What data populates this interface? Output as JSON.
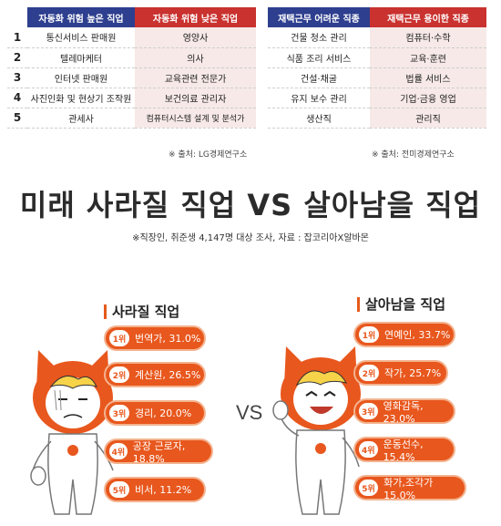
{
  "left_table": {
    "headers": [
      "자동화 위험 높은 직업",
      "자동화 위험 낮은 직업"
    ],
    "rows": [
      {
        "rank": "1",
        "high": "통신서비스 판매원",
        "low": "영양사"
      },
      {
        "rank": "2",
        "high": "텔레마케터",
        "low": "의사"
      },
      {
        "rank": "3",
        "high": "인터넷 판매원",
        "low": "교육관련 전문가"
      },
      {
        "rank": "4",
        "high": "사진인화 및 현상기 조작원",
        "low": "보건의료 관리자"
      },
      {
        "rank": "5",
        "high": "관세사",
        "low": "컴퓨터시스템 설계 및 분석가"
      }
    ],
    "source": "※ 출처: LG경제연구소"
  },
  "right_table": {
    "headers": [
      "재택근무 어려운 직종",
      "재택근무 용이한 직종"
    ],
    "rows": [
      {
        "hard": "건물 청소 관리",
        "easy": "컴퓨터·수학"
      },
      {
        "hard": "식품 조리 서비스",
        "easy": "교육·훈련"
      },
      {
        "hard": "건설·채굴",
        "easy": "법률 서비스"
      },
      {
        "hard": "유지 보수 관리",
        "easy": "기업·금융 영업"
      },
      {
        "hard": "생산직",
        "easy": "관리직"
      }
    ],
    "source": "※ 출처: 전미경제연구소"
  },
  "infographic": {
    "title": "미래 사라질 직업 VS 살아남을 직업",
    "subtitle": "※직장인, 취준생 4,147명 대상 조사, 자료 : 잡코리아X알바몬",
    "vs": "VS",
    "disappearing": {
      "title": "사라질 직업",
      "items": [
        {
          "badge": "1위",
          "text": "번역가, 31.0%"
        },
        {
          "badge": "2위",
          "text": "계산원, 26.5%"
        },
        {
          "badge": "3위",
          "text": "경리, 20.0%"
        },
        {
          "badge": "4위",
          "text": "공장 근로자, 18.8%"
        },
        {
          "badge": "5위",
          "text": "비서, 11.2%"
        }
      ]
    },
    "surviving": {
      "title": "살아남을 직업",
      "items": [
        {
          "badge": "1위",
          "text": "연예인, 33.7%"
        },
        {
          "badge": "2위",
          "text": "작가, 25.7%"
        },
        {
          "badge": "3위",
          "text": "영화감독, 23.0%"
        },
        {
          "badge": "4위",
          "text": "운동선수, 15.4%"
        },
        {
          "badge": "5위",
          "text": "화가,조각가 15.0%"
        }
      ]
    }
  },
  "colors": {
    "header_blue": "#2e3f8f",
    "header_red": "#c9322f",
    "accent_orange": "#e8571d"
  },
  "icons": [
    "sad-mascot-thumbs-down-icon",
    "happy-mascot-thumbs-up-icon"
  ]
}
